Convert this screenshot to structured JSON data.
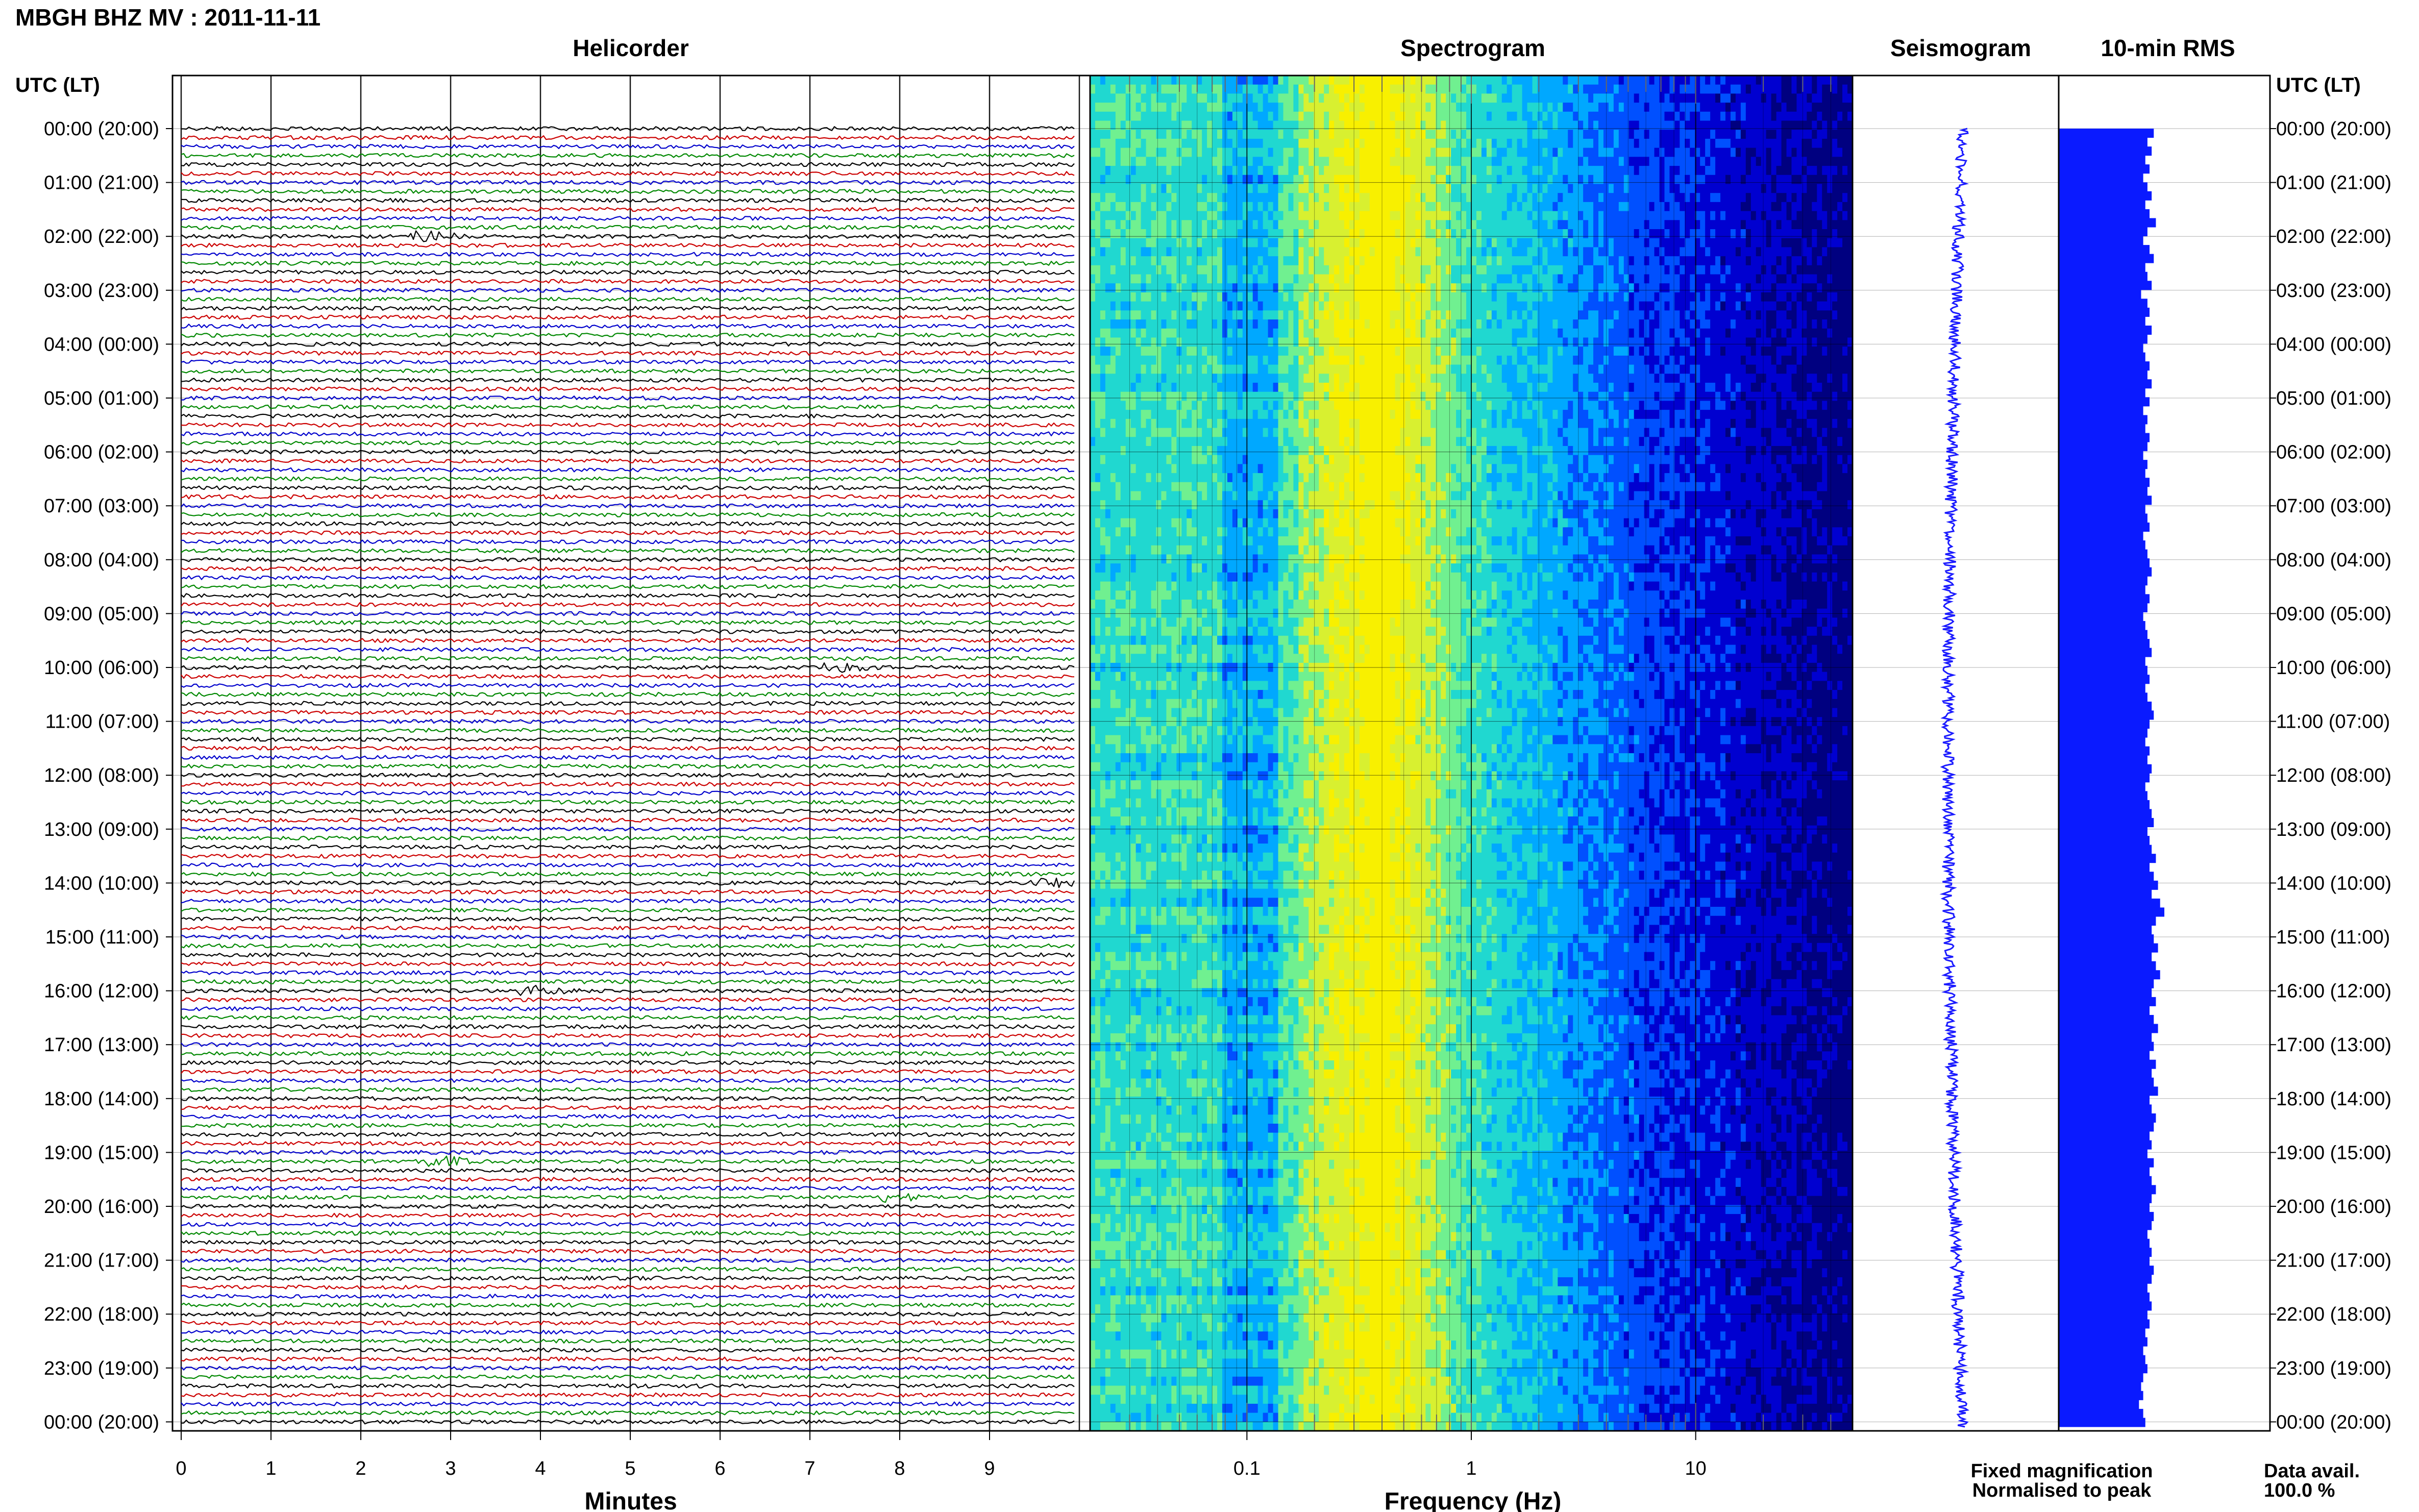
{
  "header": {
    "station_title": "MBGH BHZ MV : 2011-11-11",
    "time_header_left": "UTC (LT)",
    "time_header_right": "UTC (LT)"
  },
  "panels": {
    "helicorder": "Helicorder",
    "spectrogram": "Spectrogram",
    "seismogram": "Seismogram",
    "rms": "10-min RMS"
  },
  "legend": {
    "fixed": "Fixed magnification",
    "normalised": "Normalised to peak",
    "data_avail_label": "Data avail.",
    "data_avail_value": "100.0 %"
  },
  "colors": {
    "trace_cycle": [
      "#000000",
      "#cc0000",
      "#0000cc",
      "#008800"
    ],
    "seismogram": "#1a1aff",
    "rms_bar": "#0a1aff",
    "legend_fixed": "#0000ff",
    "legend_normalised": "#ff0000",
    "spectrogram_colormap": [
      "#000080",
      "#0000d0",
      "#0050ff",
      "#00a8ff",
      "#20d8d0",
      "#70f090",
      "#d8f030",
      "#f8f000"
    ]
  },
  "chart_data": [
    {
      "type": "line",
      "panel": "helicorder",
      "xlabel": "Minutes",
      "x_ticks": [
        "0",
        "1",
        "2",
        "3",
        "4",
        "5",
        "6",
        "7",
        "8",
        "9"
      ],
      "xlim": [
        0,
        10
      ],
      "hour_labels": [
        "00:00 (20:00)",
        "01:00 (21:00)",
        "02:00 (22:00)",
        "03:00 (23:00)",
        "04:00 (00:00)",
        "05:00 (01:00)",
        "06:00 (02:00)",
        "07:00 (03:00)",
        "08:00 (04:00)",
        "09:00 (05:00)",
        "10:00 (06:00)",
        "11:00 (07:00)",
        "12:00 (08:00)",
        "13:00 (09:00)",
        "14:00 (10:00)",
        "15:00 (11:00)",
        "16:00 (12:00)",
        "17:00 (13:00)",
        "18:00 (14:00)",
        "19:00 (15:00)",
        "20:00 (16:00)",
        "21:00 (17:00)",
        "22:00 (18:00)",
        "23:00 (19:00)",
        "00:00 (20:00)"
      ],
      "events": [
        {
          "hour": 2.0,
          "minute": 2.8
        },
        {
          "hour": 10.0,
          "minute": 7.4
        },
        {
          "hour": 14.0,
          "minute": 9.7
        },
        {
          "hour": 16.0,
          "minute": 4.0
        },
        {
          "hour": 19.1,
          "minute": 3.0
        },
        {
          "hour": 19.9,
          "minute": 8.0
        }
      ]
    },
    {
      "type": "heatmap",
      "panel": "spectrogram",
      "xlabel": "Frequency (Hz)",
      "x_scale": "log",
      "xlim": [
        0.02,
        50
      ],
      "x_ticks": [
        {
          "value": 0.1,
          "label": "0.1"
        },
        {
          "value": 1,
          "label": "1"
        },
        {
          "value": 10,
          "label": "10"
        }
      ]
    },
    {
      "type": "line",
      "panel": "seismogram"
    },
    {
      "type": "bar",
      "panel": "rms",
      "values_relative": [
        0.45,
        0.42,
        0.44,
        0.41,
        0.43,
        0.4,
        0.42,
        0.44,
        0.41,
        0.43,
        0.46,
        0.42,
        0.4,
        0.43,
        0.45,
        0.41,
        0.42,
        0.44,
        0.39,
        0.42,
        0.43,
        0.41,
        0.44,
        0.42,
        0.4,
        0.41,
        0.43,
        0.42,
        0.44,
        0.41,
        0.43,
        0.4,
        0.42,
        0.41,
        0.43,
        0.42,
        0.4,
        0.42,
        0.41,
        0.43,
        0.42,
        0.44,
        0.41,
        0.42,
        0.43,
        0.4,
        0.41,
        0.42,
        0.43,
        0.44,
        0.42,
        0.41,
        0.43,
        0.42,
        0.4,
        0.41,
        0.42,
        0.43,
        0.44,
        0.41,
        0.42,
        0.43,
        0.41,
        0.42,
        0.44,
        0.45,
        0.43,
        0.42,
        0.41,
        0.43,
        0.42,
        0.44,
        0.43,
        0.41,
        0.42,
        0.43,
        0.44,
        0.45,
        0.42,
        0.43,
        0.44,
        0.46,
        0.43,
        0.45,
        0.47,
        0.44,
        0.48,
        0.5,
        0.46,
        0.44,
        0.45,
        0.47,
        0.44,
        0.46,
        0.48,
        0.45,
        0.44,
        0.46,
        0.43,
        0.45,
        0.47,
        0.44,
        0.45,
        0.43,
        0.46,
        0.44,
        0.45,
        0.47,
        0.43,
        0.44,
        0.46,
        0.45,
        0.43,
        0.44,
        0.42,
        0.45,
        0.43,
        0.44,
        0.46,
        0.44,
        0.43,
        0.45,
        0.44,
        0.42,
        0.43,
        0.44,
        0.43,
        0.45,
        0.44,
        0.42,
        0.43,
        0.44,
        0.42,
        0.43,
        0.41,
        0.42,
        0.4,
        0.41,
        0.42,
        0.4,
        0.39,
        0.4,
        0.38,
        0.4,
        0.41
      ]
    }
  ]
}
